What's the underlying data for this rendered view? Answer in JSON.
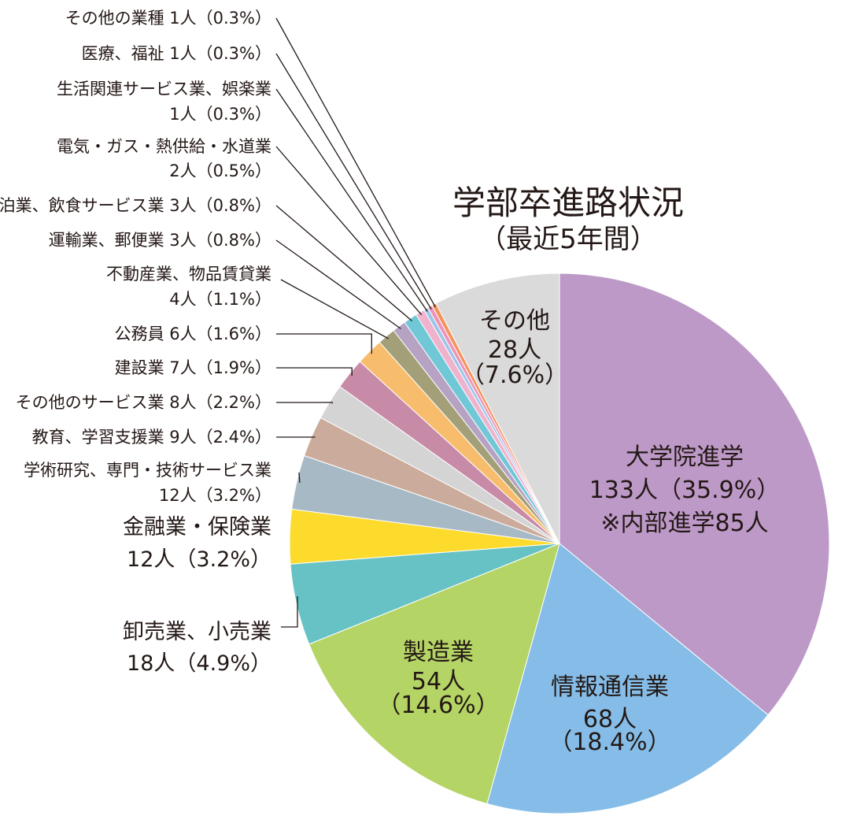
{
  "chart_data": {
    "type": "pie",
    "title": "学部卒進路状況",
    "subtitle": "（最近5年間）",
    "colors": {
      "大学院進学": "#bd99c8",
      "情報通信業": "#85bde8",
      "製造業": "#b4d465",
      "卸売業、小売業": "#66c2c4",
      "金融業・保険業": "#fddb2c",
      "学術研究、専門・技術サービス業": "#a8b9c6",
      "教育、学習支援業": "#cbab9b",
      "その他のサービス業": "#d4d4d4",
      "建設業": "#c88ba7",
      "公務員": "#f7bd6c",
      "不動産業、物品賃貸業": "#a3a079",
      "運輸業、郵便業": "#b6a2c3",
      "宿泊業、飲食サービス業": "#70c8d7",
      "電気・ガス・熱供給・水道業": "#f0b3cd",
      "生活関連サービス業、娯楽業": "#9ec6ea",
      "医療、福祉": "#ef93b8",
      "その他の業種": "#f3935e",
      "その他": "#dadada"
    },
    "slices": [
      {
        "name": "大学院進学",
        "value": 133,
        "percent": 35.9,
        "count_text": "133人",
        "percent_text": "（35.9%）",
        "note": "※内部進学85人"
      },
      {
        "name": "情報通信業",
        "value": 68,
        "percent": 18.4,
        "count_text": "68人",
        "percent_text": "（18.4%）"
      },
      {
        "name": "製造業",
        "value": 54,
        "percent": 14.6,
        "count_text": "54人",
        "percent_text": "（14.6%）"
      },
      {
        "name": "卸売業、小売業",
        "value": 18,
        "percent": 4.9,
        "count_text": "18人",
        "percent_text": "（4.9%）"
      },
      {
        "name": "金融業・保険業",
        "value": 12,
        "percent": 3.2,
        "count_text": "12人",
        "percent_text": "（3.2%）"
      },
      {
        "name": "学術研究、専門・技術サービス業",
        "value": 12,
        "percent": 3.2,
        "count_text": "12人",
        "percent_text": "（3.2%）"
      },
      {
        "name": "教育、学習支援業",
        "value": 9,
        "percent": 2.4,
        "count_text": "9人",
        "percent_text": "（2.4%）"
      },
      {
        "name": "その他のサービス業",
        "value": 8,
        "percent": 2.2,
        "count_text": "8人",
        "percent_text": "（2.2%）"
      },
      {
        "name": "建設業",
        "value": 7,
        "percent": 1.9,
        "count_text": "7人",
        "percent_text": "（1.9%）"
      },
      {
        "name": "公務員",
        "value": 6,
        "percent": 1.6,
        "count_text": "6人",
        "percent_text": "（1.6%）"
      },
      {
        "name": "不動産業、物品賃貸業",
        "value": 4,
        "percent": 1.1,
        "count_text": "4人",
        "percent_text": "（1.1%）"
      },
      {
        "name": "運輸業、郵便業",
        "value": 3,
        "percent": 0.8,
        "count_text": "3人",
        "percent_text": "（0.8%）"
      },
      {
        "name": "宿泊業、飲食サービス業",
        "value": 3,
        "percent": 0.8,
        "count_text": "3人",
        "percent_text": "（0.8%）"
      },
      {
        "name": "電気・ガス・熱供給・水道業",
        "value": 2,
        "percent": 0.5,
        "count_text": "2人",
        "percent_text": "（0.5%）"
      },
      {
        "name": "生活関連サービス業、娯楽業",
        "value": 1,
        "percent": 0.3,
        "count_text": "1人",
        "percent_text": "（0.3%）"
      },
      {
        "name": "医療、福祉",
        "value": 1,
        "percent": 0.3,
        "count_text": "1人",
        "percent_text": "（0.3%）"
      },
      {
        "name": "その他の業種",
        "value": 1,
        "percent": 0.3,
        "count_text": "1人",
        "percent_text": "（0.3%）"
      },
      {
        "name": "その他",
        "value": 28,
        "percent": 7.6,
        "count_text": "28人",
        "percent_text": "（7.6%）"
      }
    ]
  }
}
